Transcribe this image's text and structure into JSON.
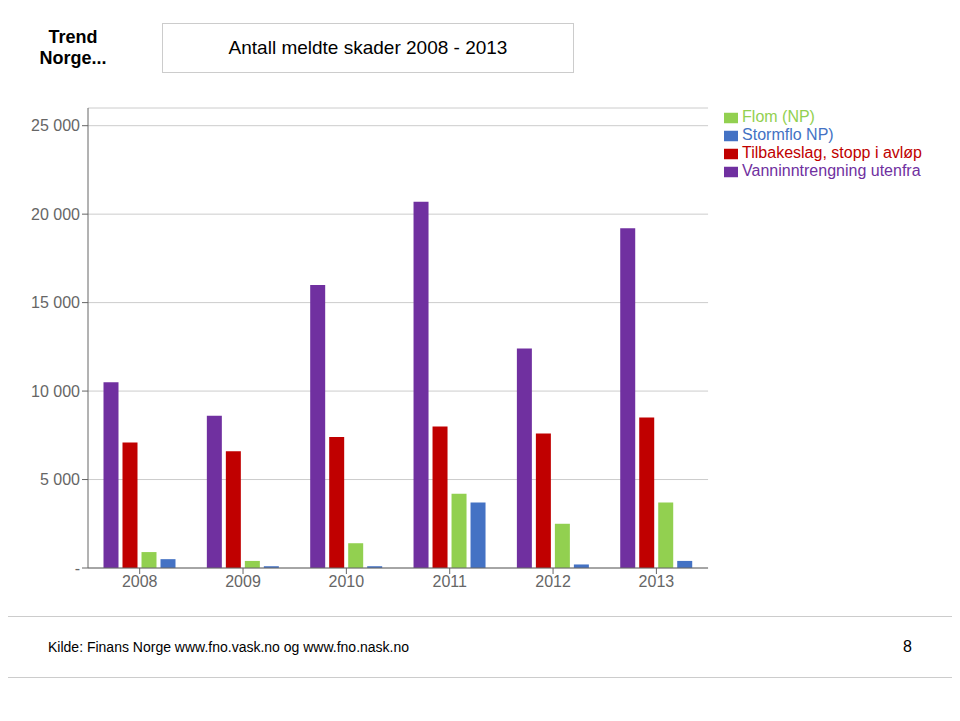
{
  "chart_data": {
    "type": "bar",
    "title": "Antall meldte skader 2008 - 2013",
    "categories": [
      "2008",
      "2009",
      "2010",
      "2011",
      "2012",
      "2013"
    ],
    "series": [
      {
        "name": "Vanninntrengning utenfra",
        "color": "#7030A0",
        "values": [
          10500,
          8600,
          16000,
          20700,
          12400,
          19200
        ]
      },
      {
        "name": "Tilbakeslag, stopp i avløp",
        "color": "#C00000",
        "values": [
          7100,
          6600,
          7400,
          8000,
          7600,
          8500
        ]
      },
      {
        "name": "Flom (NP)",
        "color": "#92D050",
        "values": [
          900,
          400,
          1400,
          4200,
          2500,
          3700
        ]
      },
      {
        "name": "Stormflo NP)",
        "color": "#4472C4",
        "values": [
          500,
          100,
          100,
          3700,
          200,
          400
        ]
      }
    ],
    "ylim": [
      0,
      26000
    ],
    "yticks": [
      {
        "value": 0,
        "label": "-"
      },
      {
        "value": 5000,
        "label": "5 000"
      },
      {
        "value": 10000,
        "label": "10 000"
      },
      {
        "value": 15000,
        "label": "15 000"
      },
      {
        "value": 20000,
        "label": "20 000"
      },
      {
        "value": 25000,
        "label": "25 000"
      }
    ],
    "grid": true,
    "legend": "upper right",
    "annotations": [
      "Trend\nNorge...",
      "Kilde: Finans Norge www.fno.vask.no og www.fno.nask.no",
      "8"
    ]
  }
}
